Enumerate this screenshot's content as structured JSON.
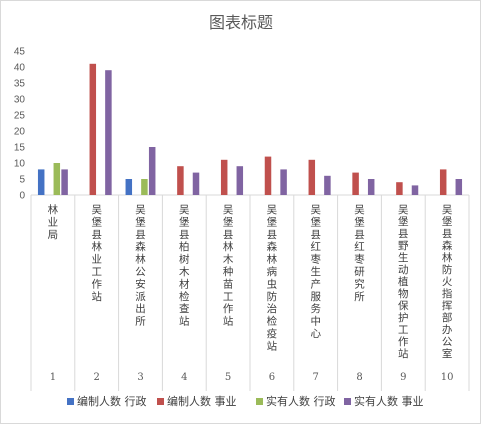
{
  "chart_data": {
    "type": "bar",
    "title": "图表标题",
    "ylim": [
      0,
      45
    ],
    "yticks": [
      0,
      5,
      10,
      15,
      20,
      25,
      30,
      35,
      40,
      45
    ],
    "grid": false,
    "legend_position": "bottom",
    "categories": [
      "林业局",
      "吴堡县林业工作站",
      "吴堡县森林公安派出所",
      "吴堡县柏树木材检查站",
      "吴堡县林木种苗工作站",
      "吴堡县森林病虫防治检疫站",
      "吴堡县红枣生产服务中心",
      "吴堡县红枣研究所",
      "吴堡县野生动植物保护工作站",
      "吴堡县森林防火指挥部办公室"
    ],
    "category_numbers": [
      "1",
      "2",
      "3",
      "4",
      "5",
      "6",
      "7",
      "8",
      "9",
      "10"
    ],
    "series": [
      {
        "name": "编制人数 行政",
        "color": "#4472c4",
        "values": [
          8,
          null,
          5,
          null,
          null,
          null,
          null,
          null,
          null,
          null
        ]
      },
      {
        "name": "编制人数 事业",
        "color": "#c0504d",
        "values": [
          null,
          41,
          null,
          9,
          11,
          12,
          11,
          7,
          4,
          8
        ]
      },
      {
        "name": "实有人数 行政",
        "color": "#9bbb59",
        "values": [
          10,
          null,
          5,
          null,
          null,
          null,
          null,
          null,
          null,
          null
        ]
      },
      {
        "name": "实有人数 事业",
        "color": "#8064a2",
        "values": [
          8,
          39,
          15,
          7,
          9,
          8,
          6,
          5,
          3,
          5
        ]
      }
    ]
  }
}
